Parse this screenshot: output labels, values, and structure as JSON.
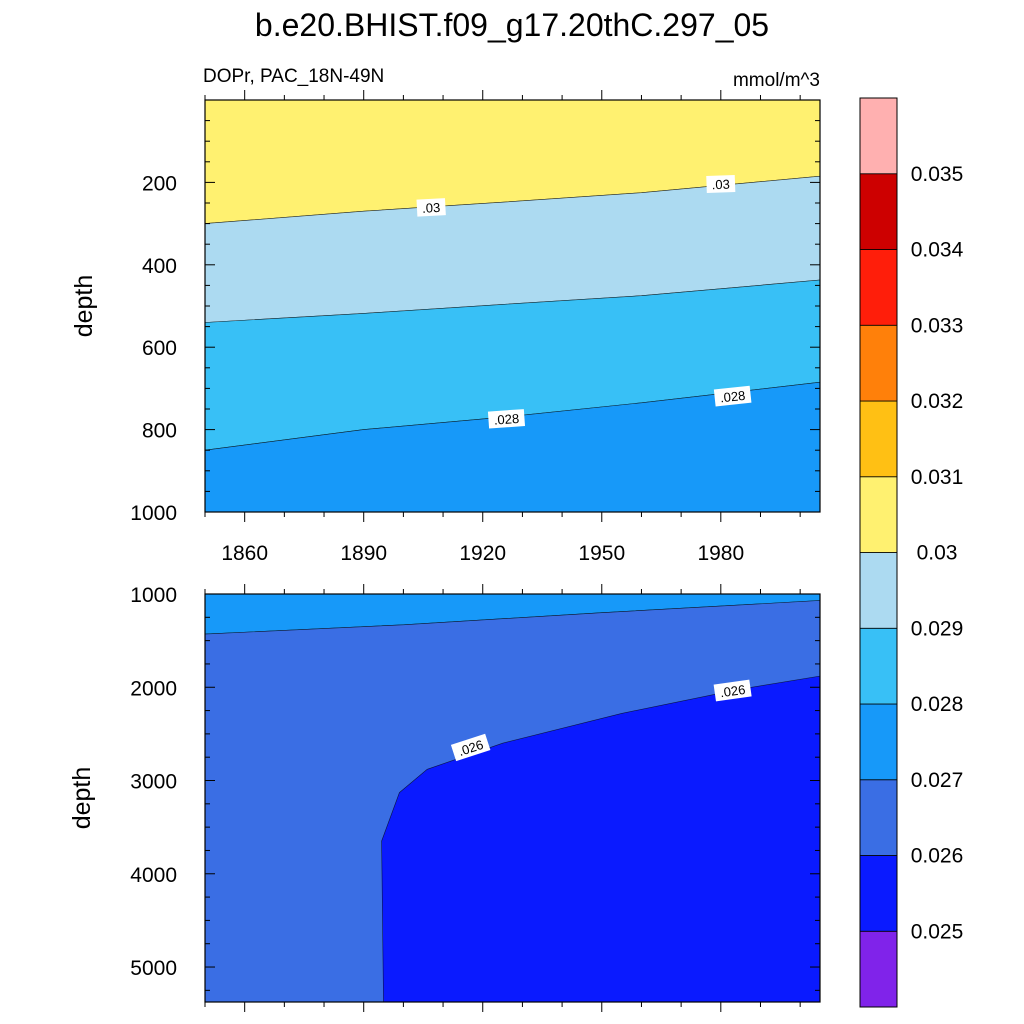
{
  "chart_data": {
    "type": "contour",
    "title": "b.e20.BHIST.f09_g17.20thC.297_05",
    "variable_label": "DOPr, PAC_18N-49N",
    "units": "mmol/m^3",
    "panels": [
      {
        "id": "upper",
        "xlabel": "",
        "ylabel": "depth",
        "xlim": [
          1850,
          2005
        ],
        "ylim": [
          0,
          1000
        ],
        "xticks": [
          1860,
          1890,
          1920,
          1950,
          1980
        ],
        "yticks": [
          200,
          400,
          600,
          800,
          1000
        ],
        "show_x_tick_labels": true,
        "regions": [
          {
            "level": "0.0300-0.0310",
            "color": "#fff170",
            "upper": [
              [
                1850,
                0
              ],
              [
                2005,
                0
              ]
            ],
            "lower": [
              [
                1850,
                300
              ],
              [
                1890,
                270
              ],
              [
                1925,
                248
              ],
              [
                1960,
                225
              ],
              [
                2005,
                185
              ]
            ]
          },
          {
            "level": "0.0290-0.0300",
            "color": "#acdaf1",
            "upper": [
              [
                1850,
                300
              ],
              [
                1890,
                270
              ],
              [
                1925,
                248
              ],
              [
                1960,
                225
              ],
              [
                2005,
                185
              ]
            ],
            "lower": [
              [
                1850,
                540
              ],
              [
                1890,
                518
              ],
              [
                1925,
                496
              ],
              [
                1960,
                475
              ],
              [
                2005,
                437
              ]
            ]
          },
          {
            "level": "0.0280-0.0290",
            "color": "#38c0f6",
            "upper": [
              [
                1850,
                540
              ],
              [
                1890,
                518
              ],
              [
                1925,
                496
              ],
              [
                1960,
                475
              ],
              [
                2005,
                437
              ]
            ],
            "lower": [
              [
                1850,
                850
              ],
              [
                1890,
                800
              ],
              [
                1925,
                770
              ],
              [
                1960,
                735
              ],
              [
                2005,
                685
              ]
            ]
          },
          {
            "level": "0.0270-0.0280",
            "color": "#1799f9",
            "upper": [
              [
                1850,
                850
              ],
              [
                1890,
                800
              ],
              [
                1925,
                770
              ],
              [
                1960,
                735
              ],
              [
                2005,
                685
              ]
            ],
            "lower": [
              [
                1850,
                1000
              ],
              [
                2005,
                1000
              ]
            ]
          }
        ],
        "contour_labels": [
          {
            "text": ".03",
            "x": 1907,
            "y": 262,
            "angle": -3
          },
          {
            "text": ".03",
            "x": 1980,
            "y": 205,
            "angle": -2
          },
          {
            "text": ".028",
            "x": 1926,
            "y": 775,
            "angle": -4
          },
          {
            "text": ".028",
            "x": 1983,
            "y": 720,
            "angle": -6
          }
        ]
      },
      {
        "id": "lower",
        "xlabel": "",
        "ylabel": "depth",
        "xlim": [
          1850,
          2005
        ],
        "ylim": [
          1000,
          5375
        ],
        "xticks": [
          1860,
          1890,
          1920,
          1950,
          1980
        ],
        "yticks": [
          1000,
          2000,
          3000,
          4000,
          5000
        ],
        "show_x_tick_labels": false,
        "regions": [
          {
            "level": "0.0270-0.0280",
            "color": "#1799f9",
            "upper": [
              [
                1850,
                1000
              ],
              [
                2005,
                1000
              ]
            ],
            "lower": [
              [
                1850,
                1430
              ],
              [
                1900,
                1330
              ],
              [
                1950,
                1200
              ],
              [
                2005,
                1070
              ]
            ]
          },
          {
            "level": "0.0260-0.0270",
            "color": "#3a6ee4",
            "upper": [
              [
                1850,
                1430
              ],
              [
                1900,
                1330
              ],
              [
                1950,
                1200
              ],
              [
                2005,
                1070
              ]
            ],
            "lower": [
              [
                1850,
                5375
              ],
              [
                2005,
                5375
              ]
            ]
          },
          {
            "level": "0.0250-0.0260",
            "color": "#0a1aff",
            "outline": [
              [
                1895,
                5375
              ],
              [
                1894.5,
                3650
              ],
              [
                1899,
                3130
              ],
              [
                1906,
                2880
              ],
              [
                1925,
                2600
              ],
              [
                1955,
                2280
              ],
              [
                1985,
                2020
              ],
              [
                2005,
                1880
              ],
              [
                2005,
                5375
              ]
            ]
          }
        ],
        "contour_labels": [
          {
            "text": ".026",
            "x": 1917,
            "y": 2650,
            "angle": -18
          },
          {
            "text": ".026",
            "x": 1983,
            "y": 2040,
            "angle": -8
          }
        ]
      }
    ],
    "colorbar": {
      "colors": [
        "#8023ea",
        "#0a1aff",
        "#3a6ee4",
        "#1799f9",
        "#38c0f6",
        "#acdaf1",
        "#fff170",
        "#ffc014",
        "#ff800a",
        "#ff1e0a",
        "#cd0000",
        "#ffb0b0"
      ],
      "labels": [
        "0.025",
        "0.026",
        "0.027",
        "0.028",
        "0.029",
        "0.03",
        "0.031",
        "0.032",
        "0.033",
        "0.034",
        "0.035"
      ]
    }
  }
}
